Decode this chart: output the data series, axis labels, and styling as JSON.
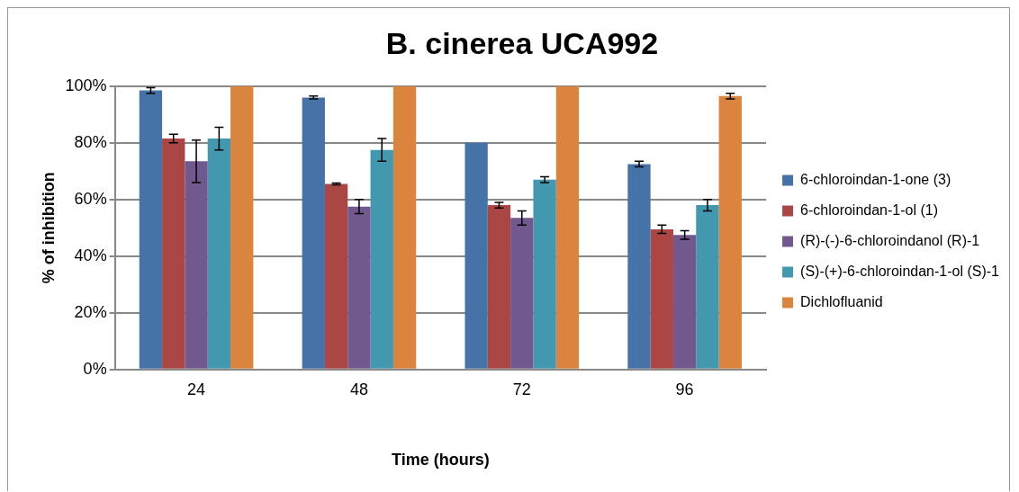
{
  "chart_data": {
    "type": "bar",
    "title": "B. cinerea UCA992",
    "xlabel": "Time (hours)",
    "ylabel": "% of inhibition",
    "categories": [
      "24",
      "48",
      "72",
      "96"
    ],
    "series": [
      {
        "name": "6-chloroindan-1-one (3)",
        "color": "#4572a7",
        "values": [
          98.5,
          96,
          80,
          72.5
        ],
        "errors": [
          1,
          0.5,
          null,
          1
        ]
      },
      {
        "name": "6-chloroindan-1-ol (1)",
        "color": "#aa4643",
        "values": [
          81.5,
          65.5,
          58,
          49.5
        ],
        "errors": [
          1.5,
          0.3,
          1,
          1.5
        ]
      },
      {
        "name": "(R)-(-)-6-chloroindanol (R)-1",
        "color": "#71588f",
        "values": [
          73.5,
          57.5,
          53.5,
          47.5
        ],
        "errors": [
          7.5,
          2.5,
          2.5,
          1.5
        ]
      },
      {
        "name": "(S)-(+)-6-chloroindan-1-ol (S)-1",
        "color": "#4198af",
        "values": [
          81.5,
          77.5,
          67,
          58
        ],
        "errors": [
          4,
          4,
          1,
          2
        ]
      },
      {
        "name": "Dichlofluanid",
        "color": "#db843d",
        "values": [
          100,
          100,
          100,
          96.5
        ],
        "errors": [
          null,
          null,
          null,
          1
        ]
      }
    ],
    "ylim": [
      0,
      100
    ],
    "yticks": [
      {
        "value": 0,
        "label": "0%"
      },
      {
        "value": 20,
        "label": "20%"
      },
      {
        "value": 40,
        "label": "40%"
      },
      {
        "value": 60,
        "label": "60%"
      },
      {
        "value": 80,
        "label": "80%"
      },
      {
        "value": 100,
        "label": "100%"
      }
    ],
    "grid": "y",
    "legend": "right"
  }
}
